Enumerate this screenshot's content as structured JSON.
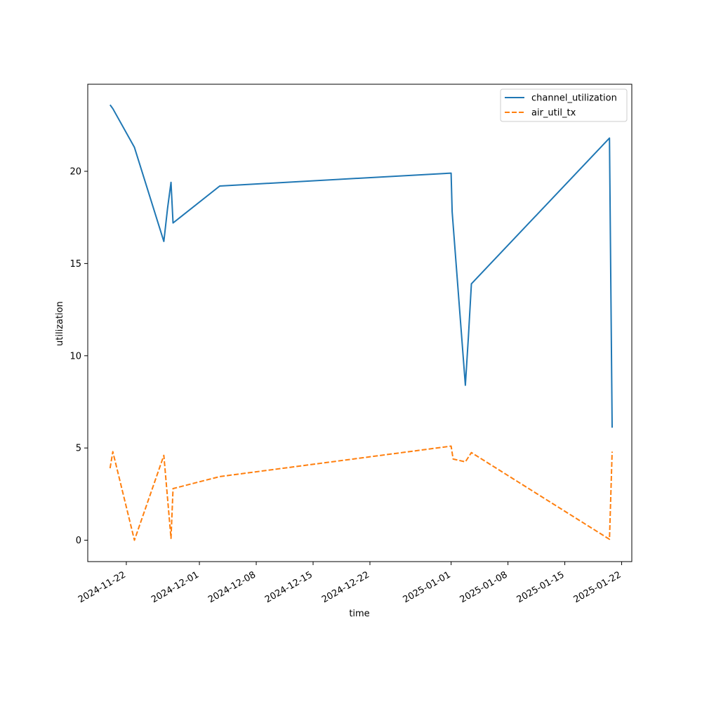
{
  "chart_data": {
    "type": "line",
    "xlabel": "time",
    "ylabel": "utilization",
    "x_axis_kind": "date",
    "xlim": [
      "2024-11-17T06:00",
      "2025-01-23T06:00"
    ],
    "ylim": [
      -1.16,
      24.72
    ],
    "x_ticks": [
      "2024-11-22",
      "2024-12-01",
      "2024-12-08",
      "2024-12-15",
      "2024-12-22",
      "2025-01-01",
      "2025-01-08",
      "2025-01-15",
      "2025-01-22"
    ],
    "y_ticks": [
      0,
      5,
      10,
      15,
      20
    ],
    "grid": false,
    "legend_position": "top-right",
    "series": [
      {
        "name": "channel_utilization",
        "color": "#1f77b4",
        "dash": "solid",
        "points": [
          {
            "x": "2024-11-20T00:00",
            "y": 23.6
          },
          {
            "x": "2024-11-20T08:00",
            "y": 23.4
          },
          {
            "x": "2024-11-23T00:00",
            "y": 21.3
          },
          {
            "x": "2024-11-26T15:00",
            "y": 16.2
          },
          {
            "x": "2024-11-27T02:00",
            "y": 18.0
          },
          {
            "x": "2024-11-27T12:00",
            "y": 19.4
          },
          {
            "x": "2024-11-27T18:00",
            "y": 17.2
          },
          {
            "x": "2024-12-03T12:00",
            "y": 19.2
          },
          {
            "x": "2025-01-01T00:00",
            "y": 19.9
          },
          {
            "x": "2025-01-01T03:00",
            "y": 17.8
          },
          {
            "x": "2025-01-02T18:00",
            "y": 8.4
          },
          {
            "x": "2025-01-03T03:00",
            "y": 11.0
          },
          {
            "x": "2025-01-03T12:00",
            "y": 13.9
          },
          {
            "x": "2025-01-20T12:00",
            "y": 21.8
          },
          {
            "x": "2025-01-20T20:00",
            "y": 6.1
          }
        ]
      },
      {
        "name": "air_util_tx",
        "color": "#ff7f0e",
        "dash": "dashed",
        "points": [
          {
            "x": "2024-11-20T00:00",
            "y": 3.9
          },
          {
            "x": "2024-11-20T08:00",
            "y": 4.8
          },
          {
            "x": "2024-11-23T00:00",
            "y": 0.0
          },
          {
            "x": "2024-11-26T15:00",
            "y": 4.6
          },
          {
            "x": "2024-11-27T12:00",
            "y": 0.1
          },
          {
            "x": "2024-11-27T18:00",
            "y": 2.8
          },
          {
            "x": "2024-12-03T12:00",
            "y": 3.45
          },
          {
            "x": "2025-01-01T00:00",
            "y": 5.1
          },
          {
            "x": "2025-01-01T06:00",
            "y": 4.4
          },
          {
            "x": "2025-01-02T18:00",
            "y": 4.25
          },
          {
            "x": "2025-01-03T12:00",
            "y": 4.75
          },
          {
            "x": "2025-01-20T12:00",
            "y": 0.05
          },
          {
            "x": "2025-01-20T20:00",
            "y": 4.8
          }
        ]
      }
    ]
  }
}
